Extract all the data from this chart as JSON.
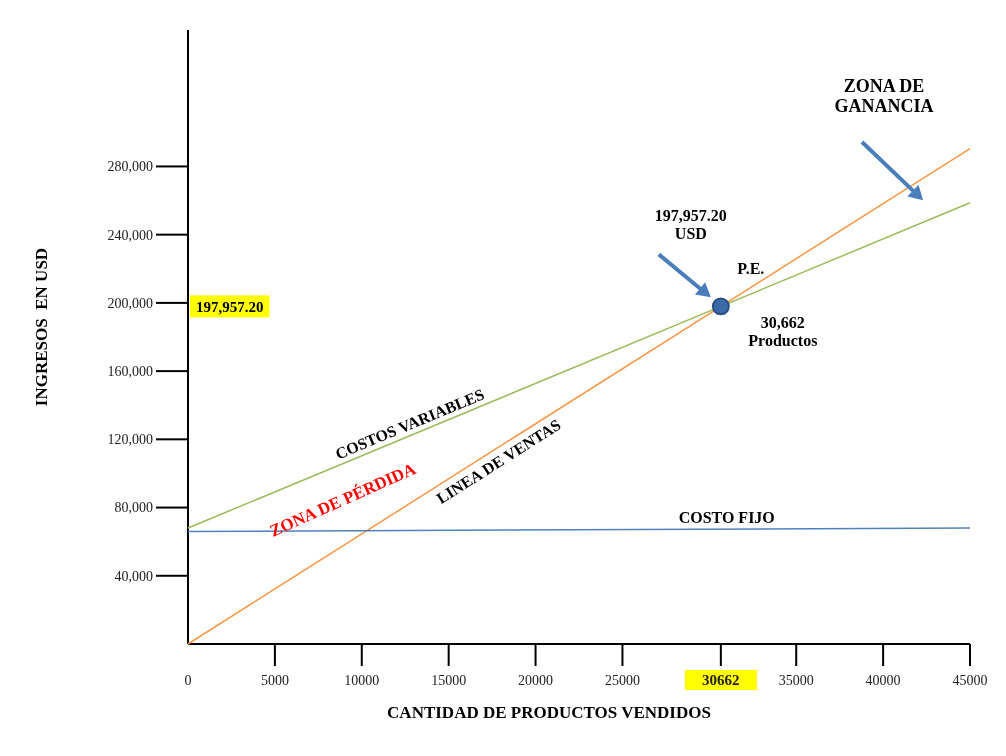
{
  "chart_data": {
    "type": "line",
    "xlabel": "CANTIDAD DE PRODUCTOS VENDIDOS",
    "ylabel": "INGRESOS  EN USD",
    "xlim": [
      0,
      45000
    ],
    "xticks": [
      0,
      5000,
      10000,
      15000,
      20000,
      25000,
      30662,
      35000,
      40000,
      45000
    ],
    "ylim": [
      0,
      360000
    ],
    "yticks": [
      {
        "value": 40000,
        "label": "40,000"
      },
      {
        "value": 80000,
        "label": "80,000"
      },
      {
        "value": 120000,
        "label": "120,000"
      },
      {
        "value": 160000,
        "label": "160,000"
      },
      {
        "value": 200000,
        "label": "200,000"
      },
      {
        "value": 240000,
        "label": "240,000"
      },
      {
        "value": 280000,
        "label": "280,000"
      }
    ],
    "series": [
      {
        "name": "COSTOS VARIABLES",
        "color": "#9bbb59",
        "x": [
          0,
          45000
        ],
        "values": [
          68000,
          258700
        ]
      },
      {
        "name": "LINEA DE VENTAS",
        "color": "#f79646",
        "x": [
          0,
          45000
        ],
        "values": [
          0,
          290500
        ]
      },
      {
        "name": "COSTO FIJO",
        "color": "#4f81bd",
        "x": [
          0,
          45000
        ],
        "values": [
          66000,
          68000
        ]
      },
      {
        "type": "scatter",
        "color": "#3c6aa8",
        "marker": "circle",
        "x": [
          30662
        ],
        "values": [
          197957.2
        ]
      }
    ],
    "annotations": [
      "197,957.20 USD",
      "P.E.",
      "30,662 Productos",
      "ZONA DE GANANCIA",
      "ZONA DE PÉRDIDA",
      "197,957.20"
    ],
    "grid": false
  }
}
